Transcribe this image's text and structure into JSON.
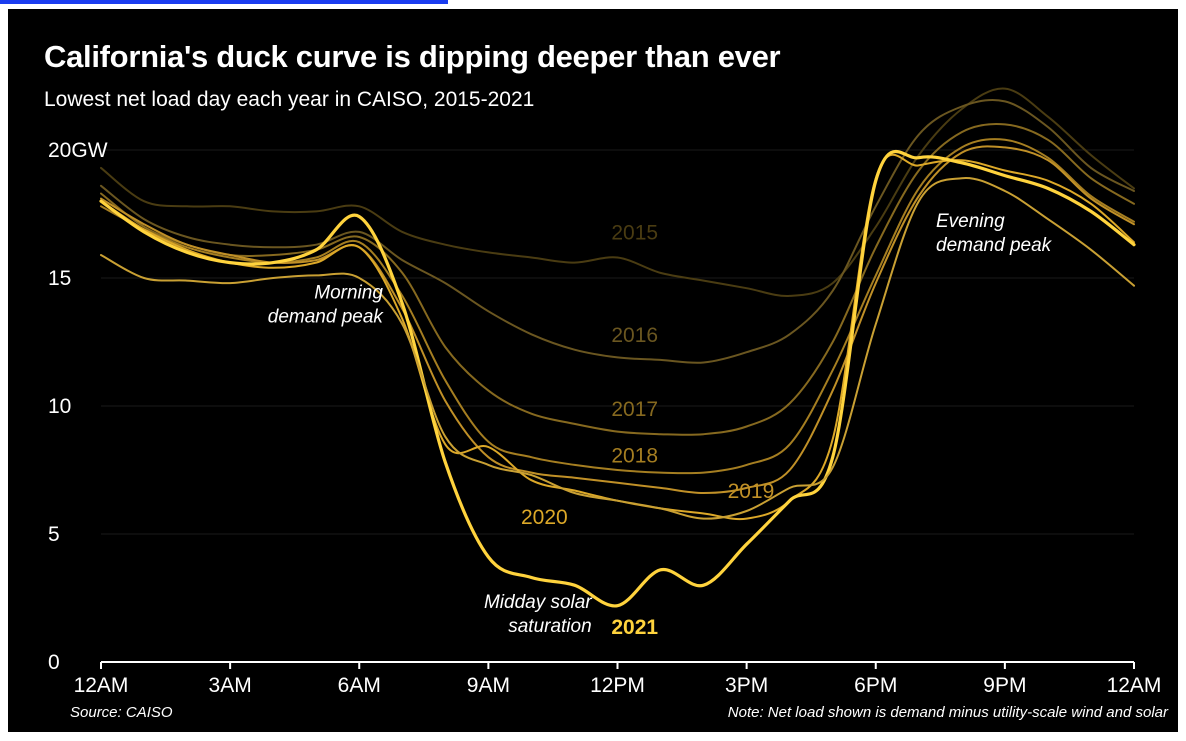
{
  "colors": {
    "background": "#000000",
    "text": "#ffffff",
    "axis": "#ffffff",
    "gridline": "#1a1a1a"
  },
  "chart_data": {
    "type": "line",
    "title": "California's duck curve is dipping deeper than ever",
    "subtitle": "Lowest net load day each year in CAISO, 2015-2021",
    "ylabel": "",
    "xlabel": "",
    "ylim": [
      0,
      20
    ],
    "xlim": [
      0,
      24
    ],
    "y_ticks": [
      {
        "value": 20,
        "label": "20GW"
      },
      {
        "value": 15,
        "label": "15"
      },
      {
        "value": 10,
        "label": "10"
      },
      {
        "value": 5,
        "label": "5"
      },
      {
        "value": 0,
        "label": "0"
      }
    ],
    "x_ticks": [
      {
        "value": 0,
        "label": "12AM"
      },
      {
        "value": 3,
        "label": "3AM"
      },
      {
        "value": 6,
        "label": "6AM"
      },
      {
        "value": 9,
        "label": "9AM"
      },
      {
        "value": 12,
        "label": "12PM"
      },
      {
        "value": 15,
        "label": "3PM"
      },
      {
        "value": 18,
        "label": "6PM"
      },
      {
        "value": 21,
        "label": "9PM"
      },
      {
        "value": 24,
        "label": "12AM"
      }
    ],
    "grid": true,
    "x": [
      0,
      1,
      2,
      3,
      4,
      5,
      6,
      7,
      8,
      9,
      10,
      11,
      12,
      13,
      14,
      15,
      16,
      17,
      18,
      19,
      20,
      21,
      22,
      23,
      24
    ],
    "series": [
      {
        "name": "2015",
        "color": "#4a3c12",
        "label_x": 12.4,
        "label_y": 16.5,
        "bold": false,
        "values": [
          19.3,
          18.0,
          17.8,
          17.8,
          17.6,
          17.6,
          17.8,
          16.8,
          16.3,
          16.0,
          15.8,
          15.6,
          15.8,
          15.2,
          14.9,
          14.6,
          14.3,
          14.8,
          17.0,
          19.8,
          21.6,
          22.4,
          21.3,
          19.8,
          18.5
        ]
      },
      {
        "name": "2016",
        "color": "#6a5620",
        "label_x": 12.4,
        "label_y": 12.5,
        "bold": false,
        "values": [
          18.6,
          17.3,
          16.6,
          16.3,
          16.2,
          16.3,
          16.8,
          15.7,
          14.8,
          13.7,
          12.8,
          12.2,
          11.9,
          11.8,
          11.7,
          12.1,
          12.8,
          14.5,
          17.8,
          20.6,
          21.7,
          21.9,
          20.9,
          19.3,
          18.4
        ]
      },
      {
        "name": "2017",
        "color": "#86691f",
        "label_x": 12.4,
        "label_y": 9.6,
        "bold": false,
        "values": [
          18.3,
          17.0,
          16.3,
          15.9,
          15.9,
          16.1,
          16.6,
          15.2,
          12.3,
          10.6,
          9.7,
          9.3,
          9.0,
          8.9,
          8.9,
          9.2,
          10.1,
          12.5,
          16.2,
          19.2,
          20.7,
          21.0,
          20.4,
          18.9,
          17.9
        ]
      },
      {
        "name": "2018",
        "color": "#a57e21",
        "label_x": 12.4,
        "label_y": 7.8,
        "bold": false,
        "values": [
          17.8,
          16.9,
          16.2,
          15.8,
          15.6,
          15.8,
          16.4,
          14.3,
          11.0,
          8.6,
          8.0,
          7.7,
          7.5,
          7.4,
          7.4,
          7.7,
          8.5,
          11.4,
          15.1,
          18.5,
          20.1,
          20.4,
          19.7,
          18.2,
          17.2
        ]
      },
      {
        "name": "2019",
        "color": "#c09027",
        "label_x": 15.1,
        "label_y": 6.4,
        "bold": false,
        "values": [
          18.1,
          17.1,
          16.3,
          15.9,
          15.6,
          15.7,
          16.2,
          13.8,
          10.2,
          8.0,
          7.4,
          7.2,
          7.0,
          6.8,
          6.6,
          6.8,
          7.5,
          10.6,
          14.8,
          18.2,
          19.9,
          20.1,
          19.6,
          18.1,
          17.1
        ]
      },
      {
        "name": "2020",
        "color": "#dca828",
        "label_x": 10.3,
        "label_y": 5.4,
        "bold": false,
        "values": [
          18.0,
          16.9,
          16.1,
          15.6,
          15.4,
          15.6,
          16.2,
          13.4,
          8.5,
          8.4,
          7.1,
          6.7,
          6.3,
          6.0,
          5.8,
          5.6,
          6.3,
          8.7,
          18.9,
          19.4,
          19.6,
          19.2,
          18.8,
          17.9,
          16.4
        ]
      },
      {
        "name": "2021",
        "color": "#ffd33d",
        "label_x": 12.4,
        "label_y": 1.1,
        "bold": true,
        "values": [
          18.0,
          16.8,
          16.0,
          15.6,
          15.6,
          16.1,
          17.4,
          14.0,
          7.8,
          4.1,
          3.3,
          3.0,
          2.2,
          3.6,
          3.0,
          4.6,
          6.3,
          8.0,
          18.8,
          19.7,
          19.5,
          19.0,
          18.5,
          17.6,
          16.3
        ]
      },
      {
        "name": "",
        "color": "#c9a033",
        "label_x": null,
        "label_y": null,
        "bold": false,
        "values": [
          15.9,
          15.0,
          14.9,
          14.8,
          15.0,
          15.1,
          15.0,
          13.2,
          8.8,
          7.7,
          7.3,
          6.6,
          6.3,
          6.0,
          5.6,
          5.9,
          6.8,
          7.6,
          13.2,
          18.0,
          18.9,
          18.4,
          17.3,
          16.1,
          14.7
        ]
      }
    ],
    "annotations": [
      {
        "text": [
          "Morning",
          "demand peak"
        ],
        "x": 6.55,
        "y": 14.2,
        "anchor": "end"
      },
      {
        "text": [
          "Evening",
          "demand peak"
        ],
        "x": 19.4,
        "y": 17.0,
        "anchor": "start"
      },
      {
        "text": [
          "Midday solar",
          "saturation"
        ],
        "x": 11.4,
        "y": 2.1,
        "anchor": "end"
      }
    ],
    "source": "Source: CAISO",
    "note": "Note: Net load shown is demand minus utility-scale wind and solar"
  }
}
